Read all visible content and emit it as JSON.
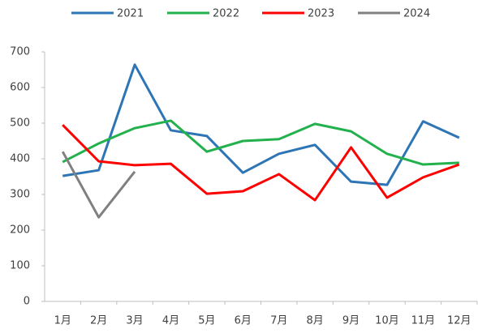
{
  "chart_data": {
    "type": "line",
    "categories": [
      "1月",
      "2月",
      "3月",
      "4月",
      "5月",
      "6月",
      "7月",
      "8月",
      "9月",
      "10月",
      "11月",
      "12月"
    ],
    "series": [
      {
        "name": "2021",
        "color": "#2e75b6",
        "values": [
          352,
          368,
          664,
          480,
          464,
          361,
          414,
          439,
          336,
          327,
          505,
          459
        ]
      },
      {
        "name": "2022",
        "color": "#22b14c",
        "values": [
          391,
          443,
          486,
          507,
          420,
          450,
          455,
          498,
          477,
          414,
          384,
          389
        ]
      },
      {
        "name": "2023",
        "color": "#ff0000",
        "values": [
          495,
          393,
          382,
          386,
          302,
          309,
          357,
          284,
          432,
          291,
          348,
          384
        ]
      },
      {
        "name": "2024",
        "color": "#808080",
        "values": [
          420,
          236,
          364,
          null,
          null,
          null,
          null,
          null,
          null,
          null,
          null,
          null
        ]
      }
    ],
    "ylim": [
      0,
      700
    ],
    "yticks": [
      0,
      100,
      200,
      300,
      400,
      500,
      600,
      700
    ],
    "grid": false,
    "legend": "top"
  }
}
